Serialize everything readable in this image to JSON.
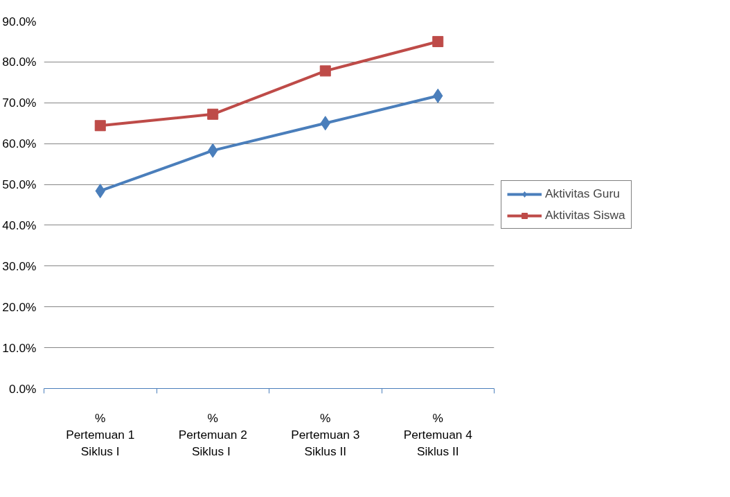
{
  "chart_data": {
    "type": "line",
    "categories": [
      "%\nPertemuan 1\nSiklus I",
      "%\nPertemuan 2\nSiklus  I",
      "%\nPertemuan 3\nSiklus II",
      "%\nPertemuan 4\nSiklus II"
    ],
    "series": [
      {
        "name": "Aktivitas Guru",
        "color": "#4a7ebb",
        "marker": "diamond",
        "values": [
          48.4,
          58.3,
          65.0,
          71.7
        ]
      },
      {
        "name": "Aktivitas Siswa",
        "color": "#be4b48",
        "marker": "square",
        "values": [
          64.4,
          67.2,
          77.8,
          85.0
        ]
      }
    ],
    "ylim": [
      0,
      90
    ],
    "yticks": [
      {
        "value": 0,
        "label": "0.0%"
      },
      {
        "value": 10,
        "label": "10.0%"
      },
      {
        "value": 20,
        "label": "20.0%"
      },
      {
        "value": 30,
        "label": "30.0%"
      },
      {
        "value": 40,
        "label": "40.0%"
      },
      {
        "value": 50,
        "label": "50.0%"
      },
      {
        "value": 60,
        "label": "60.0%"
      },
      {
        "value": 70,
        "label": "70.0%"
      },
      {
        "value": 80,
        "label": "80.0%"
      },
      {
        "value": 90,
        "label": "90.0%"
      }
    ],
    "grid": "y",
    "legend": "right",
    "line_style": "solid"
  }
}
